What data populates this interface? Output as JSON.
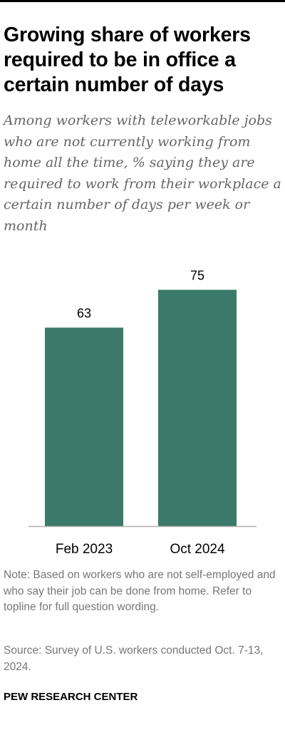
{
  "title": "Growing share of workers required to be in office a certain number of days",
  "subtitle": "Among workers with teleworkable jobs who are not currently working from home all the time, % saying they are required to work from their workplace a certain number of days per week or month",
  "note": "Note: Based on workers who are not self-employed and who say their job can be done from home. Refer to topline for full question wording.",
  "source": "Source: Survey of U.S. workers conducted Oct. 7-13, 2024.",
  "brand": "PEW RESEARCH CENTER",
  "colors": {
    "bar": "#3b7a6a",
    "baseline": "#b0b0b0",
    "top_rule": "#000000"
  },
  "chart_data": {
    "type": "bar",
    "categories": [
      "Feb 2023",
      "Oct 2024"
    ],
    "values": [
      63,
      75
    ],
    "data_labels": [
      "63",
      "75"
    ],
    "ylim": [
      0,
      100
    ],
    "grid": false,
    "legend": "none"
  }
}
